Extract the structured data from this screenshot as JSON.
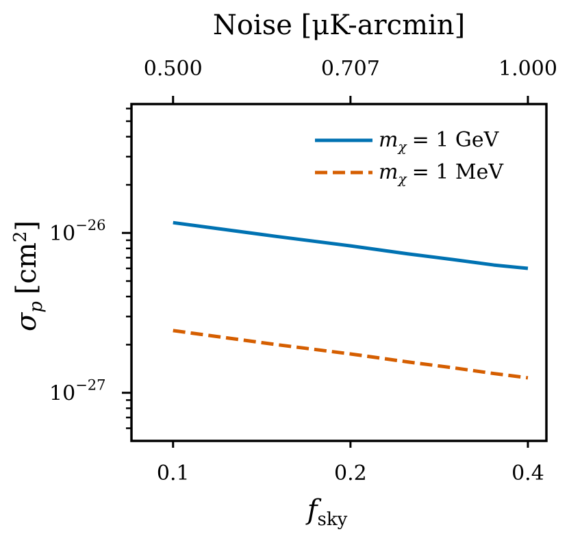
{
  "chart_data": {
    "type": "line",
    "x_scale": "log",
    "y_scale": "log",
    "xlabel_base": "f",
    "xlabel_sub": "sky",
    "ylabel_base": "σ",
    "ylabel_sub": "p",
    "ylabel_unit_open": "[cm",
    "ylabel_unit_exp": "2",
    "ylabel_unit_close": "]",
    "top_xlabel": "Noise [μK-arcmin]",
    "xlim": [
      0.085,
      0.43
    ],
    "ylim": [
      5e-28,
      6.4e-26
    ],
    "x_ticks": [
      {
        "value": 0.1,
        "label": "0.1"
      },
      {
        "value": 0.2,
        "label": "0.2"
      },
      {
        "value": 0.4,
        "label": "0.4"
      }
    ],
    "top_ticks": [
      {
        "value": 0.1,
        "label": "0.500"
      },
      {
        "value": 0.2,
        "label": "0.707"
      },
      {
        "value": 0.4,
        "label": "1.000"
      }
    ],
    "y_major_ticks": [
      {
        "value": 1e-27,
        "base": "10",
        "exp": "−27"
      },
      {
        "value": 1e-26,
        "base": "10",
        "exp": "−26"
      }
    ],
    "y_minor_ticks": [
      6e-28,
      7e-28,
      8e-28,
      9e-28,
      2e-27,
      3e-27,
      4e-27,
      5e-27,
      6e-27,
      7e-27,
      8e-27,
      9e-27,
      2e-26,
      3e-26,
      4e-26,
      5e-26,
      6e-26
    ],
    "series": [
      {
        "name": "m_χ = 1 GeV",
        "legend_base": "m",
        "legend_sub": "χ",
        "legend_rest": "= 1 GeV",
        "color": "#0072B2",
        "dash": "solid",
        "x": [
          0.1,
          0.15,
          0.2,
          0.25,
          0.3,
          0.35,
          0.4
        ],
        "y": [
          1.16e-26,
          9.5e-27,
          8.3e-27,
          7.4e-27,
          6.8e-27,
          6.3e-27,
          6e-27
        ]
      },
      {
        "name": "m_χ = 1 MeV",
        "legend_base": "m",
        "legend_sub": "χ",
        "legend_rest": "= 1 MeV",
        "color": "#D55E00",
        "dash": "dashed",
        "x": [
          0.1,
          0.15,
          0.2,
          0.25,
          0.3,
          0.35,
          0.4
        ],
        "y": [
          2.45e-27,
          2e-27,
          1.75e-27,
          1.56e-27,
          1.43e-27,
          1.32e-27,
          1.24e-27
        ]
      }
    ],
    "legend_position": "upper-right"
  }
}
